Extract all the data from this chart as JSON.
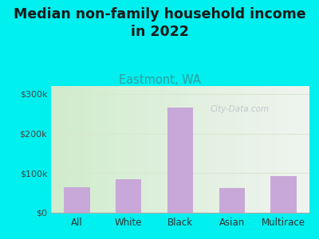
{
  "title": "Median non-family household income\nin 2022",
  "subtitle": "Eastmont, WA",
  "categories": [
    "All",
    "White",
    "Black",
    "Asian",
    "Multirace"
  ],
  "values": [
    65000,
    85000,
    265000,
    62000,
    92000
  ],
  "bar_color": "#c8a8d8",
  "title_fontsize": 12.5,
  "subtitle_fontsize": 10.5,
  "subtitle_color": "#30a0a0",
  "title_color": "#1a1a1a",
  "background_outer": "#00EFEF",
  "yticks": [
    0,
    100000,
    200000,
    300000
  ],
  "ytick_labels": [
    "$0",
    "$100k",
    "$200k",
    "$300k"
  ],
  "ylim": [
    0,
    320000
  ],
  "watermark": "City-Data.com",
  "watermark_color": "#b8c4cc",
  "tick_color": "#444444",
  "xlabel_color": "#333333",
  "grid_color": "#d8e8d0",
  "spine_color": "#aaaaaa"
}
